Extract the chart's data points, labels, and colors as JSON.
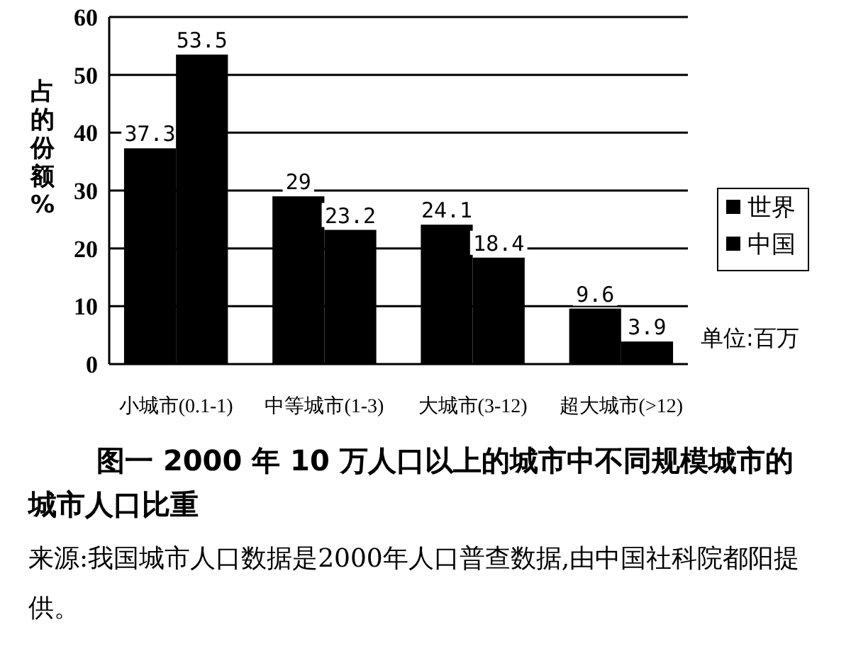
{
  "chart_data": {
    "type": "bar",
    "title": "图一 2000 年 10 万人口以上的城市中不同规模城市的城市人口比重",
    "ylabel": "占的份额%",
    "categories": [
      "小城市(0.1-1)",
      "中等城市(1-3)",
      "大城市(3-12)",
      "超大城市(>12)"
    ],
    "series": [
      {
        "name": "世界",
        "color": "#000000",
        "values": [
          37.3,
          29,
          24.1,
          9.6
        ]
      },
      {
        "name": "中国",
        "color": "#000000",
        "values": [
          53.5,
          23.2,
          18.4,
          3.9
        ]
      }
    ],
    "ylim": [
      0,
      60
    ],
    "yticks": [
      0,
      10,
      20,
      30,
      40,
      50,
      60
    ],
    "grid": "y",
    "legend": "right",
    "data_labels": true,
    "annotations": [
      "单位:百万",
      "来源:我国城市人口数据是2000年人口普查数据,由中国社科院都阳提供。"
    ]
  }
}
